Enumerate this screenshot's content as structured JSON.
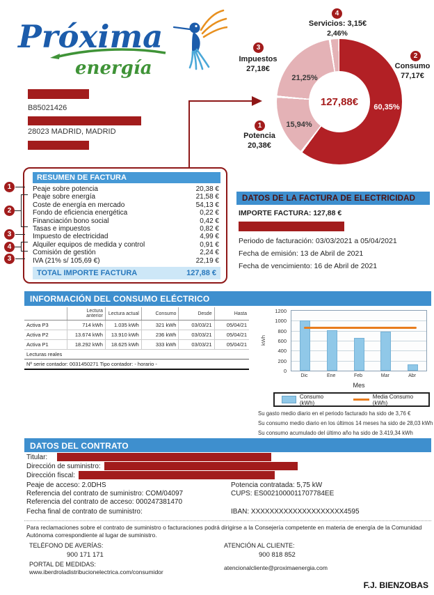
{
  "brand": {
    "name": "Próxima",
    "tagline": "energía"
  },
  "customer": {
    "tax_id": "B85021426",
    "address_line": "28023 MADRID, MADRID"
  },
  "donut": {
    "center_total": "127,88€",
    "labels": {
      "servicios": {
        "badge": "4",
        "title": "Servicios: 3,15€",
        "pct": "2,46%"
      },
      "consumo": {
        "badge": "2",
        "title": "Consumo",
        "amount": "77,17€",
        "pct": "60,35%"
      },
      "impuestos": {
        "badge": "3",
        "title": "Impuestos",
        "amount": "27,18€",
        "pct": "21,25%"
      },
      "potencia": {
        "badge": "1",
        "title": "Potencia",
        "amount": "20,38€",
        "pct": "15,94%"
      }
    }
  },
  "resumen": {
    "title": "RESUMEN DE FACTURA",
    "badges": [
      "1",
      "2",
      "3",
      "4",
      "3"
    ],
    "rows": [
      {
        "label": "Peaje sobre potencia",
        "value": "20,38 €"
      },
      {
        "label": "Peaje sobre energía",
        "value": "21,58 €"
      },
      {
        "label": "Coste de energía en mercado",
        "value": "54,13 €"
      },
      {
        "label": "Fondo de eficiencia energética",
        "value": "0,22 €"
      },
      {
        "label": "Financiación bono social",
        "value": "0,42 €"
      },
      {
        "label": "Tasas e impuestos",
        "value": "0,82 €"
      },
      {
        "label": "Impuesto de electricidad",
        "value": "4,99 €"
      },
      {
        "label": "Alquiler equipos de medida y control",
        "value": "0,91 €"
      },
      {
        "label": "Comisión de gestión",
        "value": "2,24 €"
      },
      {
        "label": "IVA (21% s/ 105,69 €)",
        "value": "22,19 €"
      }
    ],
    "total_label": "TOTAL IMPORTE FACTURA",
    "total_value": "127,88 €"
  },
  "factura": {
    "title": "DATOS DE LA FACTURA DE ELECTRICIDAD",
    "importe": "IMPORTE FACTURA: 127,88 €",
    "periodo": "Periodo de facturación: 03/03/2021 a 05/04/2021",
    "emision": "Fecha de emisión: 13 de Abril de 2021",
    "vencimiento": "Fecha de vencimiento: 16 de Abril de 2021"
  },
  "consumo": {
    "title": "INFORMACIÓN DEL CONSUMO ELÉCTRICO",
    "table": {
      "columns": [
        "",
        "Lectura anterior",
        "Lectura actual",
        "Consumo",
        "Desde",
        "Hasta"
      ],
      "rows": [
        [
          "Activa P3",
          "714 kWh",
          "1.035 kWh",
          "321 kWh",
          "03/03/21",
          "05/04/21"
        ],
        [
          "Activa P2",
          "13.674 kWh",
          "13.910 kWh",
          "236 kWh",
          "03/03/21",
          "05/04/21"
        ],
        [
          "Activa P1",
          "18.292 kWh",
          "18.625 kWh",
          "333 kWh",
          "03/03/21",
          "05/04/21"
        ]
      ],
      "note1": "Lecturas reales",
      "note2": "Nº serie contador: 0031450271 Tipo contador: - horario -"
    },
    "stats": [
      "Su gasto medio diario en el periodo facturado ha sido de 3,76 €",
      "Su consumo medio diario en los últimos 14 meses ha sido de 28,03 kWh",
      "Su consumo acumulado del último año ha sido de 3.419,34 kWh"
    ]
  },
  "chart_data": [
    {
      "type": "pie",
      "labels": [
        "Consumo",
        "Potencia",
        "Impuestos",
        "Servicios"
      ],
      "values_eur": [
        77.17,
        20.38,
        27.18,
        3.15
      ],
      "percent": [
        60.35,
        15.94,
        21.25,
        2.46
      ],
      "center_label": "127,88€",
      "colors": [
        "#b22025",
        "#e4b2b6",
        "#e4b2b6",
        "#e4b2b6"
      ],
      "legend_position": "around"
    },
    {
      "type": "bar",
      "categories": [
        "Dic",
        "Ene",
        "Feb",
        "Mar",
        "Abr"
      ],
      "values": [
        1000,
        810,
        650,
        780,
        120
      ],
      "media_line": 860,
      "xlabel": "Mes",
      "ylabel": "kWh",
      "ylim": [
        0,
        1200
      ],
      "yticks": [
        0,
        200,
        400,
        600,
        800,
        1000,
        1200
      ],
      "legend": [
        "Consumo (kWh)",
        "Media Consumo (kWh)"
      ],
      "bar_color": "#90c8e8",
      "line_color": "#e87d1e",
      "grid": true
    }
  ],
  "contrato": {
    "title": "DATOS DEL CONTRATO",
    "titular_label": "Titular:",
    "suministro_label": "Dirección de suministro:",
    "fiscal_label": "Dirección fiscal:",
    "peaje": "Peaje de acceso: 2.0DHS",
    "ref_suministro": "Referencia del contrato de suministro: COM/04097",
    "ref_acceso": "Referencia del contrato de acceso: 000247381470",
    "fecha_final": "Fecha final de contrato de suministro:",
    "potencia": "Potencia contratada: 5,75 kW",
    "cups": "CUPS: ES0021000011707784EE",
    "iban": "IBAN: XXXXXXXXXXXXXXXXXXXX4595"
  },
  "footer": {
    "legal": "Para reclamaciones sobre el contrato de suministro o facturaciones podrá dirigirse a la Consejería competente en materia de energía de la Comunidad Autónoma correspondiente al lugar de suministro.",
    "averias_label": "TELÉFONO DE AVERÍAS:",
    "averias_phone": "900 171 171",
    "atencion_label": "ATENCIÓN AL CLIENTE:",
    "atencion_phone": "900 818 852",
    "portal_label": "PORTAL DE MEDIDAS:",
    "portal_url": "www.iberdroladistribucionelectrica.com/consumidor",
    "email": "atencionalcliente@proximaenergia.com",
    "signature": "F.J. BIENZOBAS"
  },
  "colors": {
    "blue_header": "#3e8fce",
    "light_blue": "#cde7f7",
    "dark_red": "#a21c1c",
    "donut_red": "#b22025",
    "donut_pink": "#e4b2b6",
    "bar_blue": "#90c8e8",
    "orange": "#e87d1e"
  }
}
